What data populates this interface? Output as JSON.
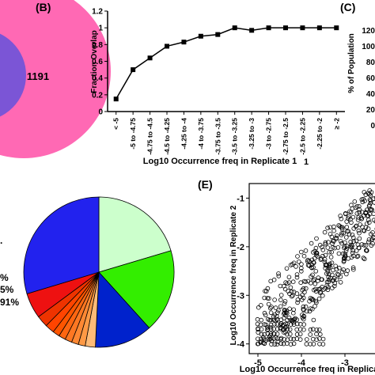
{
  "panels": {
    "b_label": "(B)",
    "c_label": "(C)",
    "e_label": "(E)"
  },
  "venn": {
    "count": "1191",
    "colors": {
      "outer": "#ff69b4",
      "inner": "#7b55d6"
    }
  },
  "panel_c": {
    "ylabel": "% of Population",
    "ticks": [
      "120",
      "100",
      "80",
      "60",
      "40",
      "20",
      "0"
    ]
  },
  "pie_legend_fragments": [
    "%",
    "5%",
    "91%"
  ],
  "stray_mark": "1",
  "chart_data": [
    {
      "type": "line",
      "panel": "B",
      "title": "",
      "xlabel": "Log10 Occurrence freq in Replicate 1",
      "ylabel": "Fraction Overlap",
      "categories": [
        "< -5",
        "-5 to -4.75",
        "-4.75 to -4.5",
        "-4.5 to -4.25",
        "-4.25 to -4",
        "-4 to -3.75",
        "-3.75 to -3.5",
        "-3.5 to -3.25",
        "-3.25 to -3",
        "-3 to -2.75",
        "-2.75 to -2.5",
        "-2.5 to -2.25",
        "-2.25 to -2",
        "≥ -2"
      ],
      "values": [
        0.15,
        0.5,
        0.64,
        0.78,
        0.83,
        0.9,
        0.92,
        1.0,
        0.97,
        1.0,
        1.0,
        1.0,
        1.0,
        1.0
      ],
      "yticks": [
        "0",
        "0.2",
        "0.4",
        "0.6",
        "0.8",
        "1",
        "1.2"
      ],
      "ylim": [
        0,
        1.2
      ]
    },
    {
      "type": "pie",
      "panel": "D",
      "slices": [
        {
          "value": 20.5,
          "color": "#ccffcc"
        },
        {
          "value": 18.0,
          "color": "#33ee00"
        },
        {
          "value": 12.5,
          "color": "#0022cc"
        },
        {
          "value": 2.2,
          "color": "#ffbb77"
        },
        {
          "value": 1.5,
          "color": "#ff9944"
        },
        {
          "value": 1.5,
          "color": "#ff8833"
        },
        {
          "value": 1.5,
          "color": "#ff7722"
        },
        {
          "value": 1.5,
          "color": "#ff6611"
        },
        {
          "value": 1.5,
          "color": "#ff5500"
        },
        {
          "value": 2.0,
          "color": "#ff4400"
        },
        {
          "value": 2.5,
          "color": "#ee3300"
        },
        {
          "value": 5.5,
          "color": "#ee1111"
        },
        {
          "value": 29.8,
          "color": "#2222ee"
        }
      ]
    },
    {
      "type": "scatter",
      "panel": "E",
      "title": "",
      "xlabel": "Log10 Occurrence freq in Replicate 1",
      "ylabel": "Log10 Occurrence freq in Replicate 2",
      "xlim": [
        -5.2,
        -2.2
      ],
      "ylim": [
        -4.2,
        -0.7
      ],
      "xticks": [
        -5,
        -4,
        -3
      ],
      "yticks": [
        -1,
        -2,
        -3,
        -4
      ],
      "point_count_estimate": 900,
      "distribution": "dense rows near y=-4 to -3.5 for x between -5 and -3.5; diffuse cloud rising toward upper right, y ≈ 0.85x + 0.6"
    }
  ]
}
